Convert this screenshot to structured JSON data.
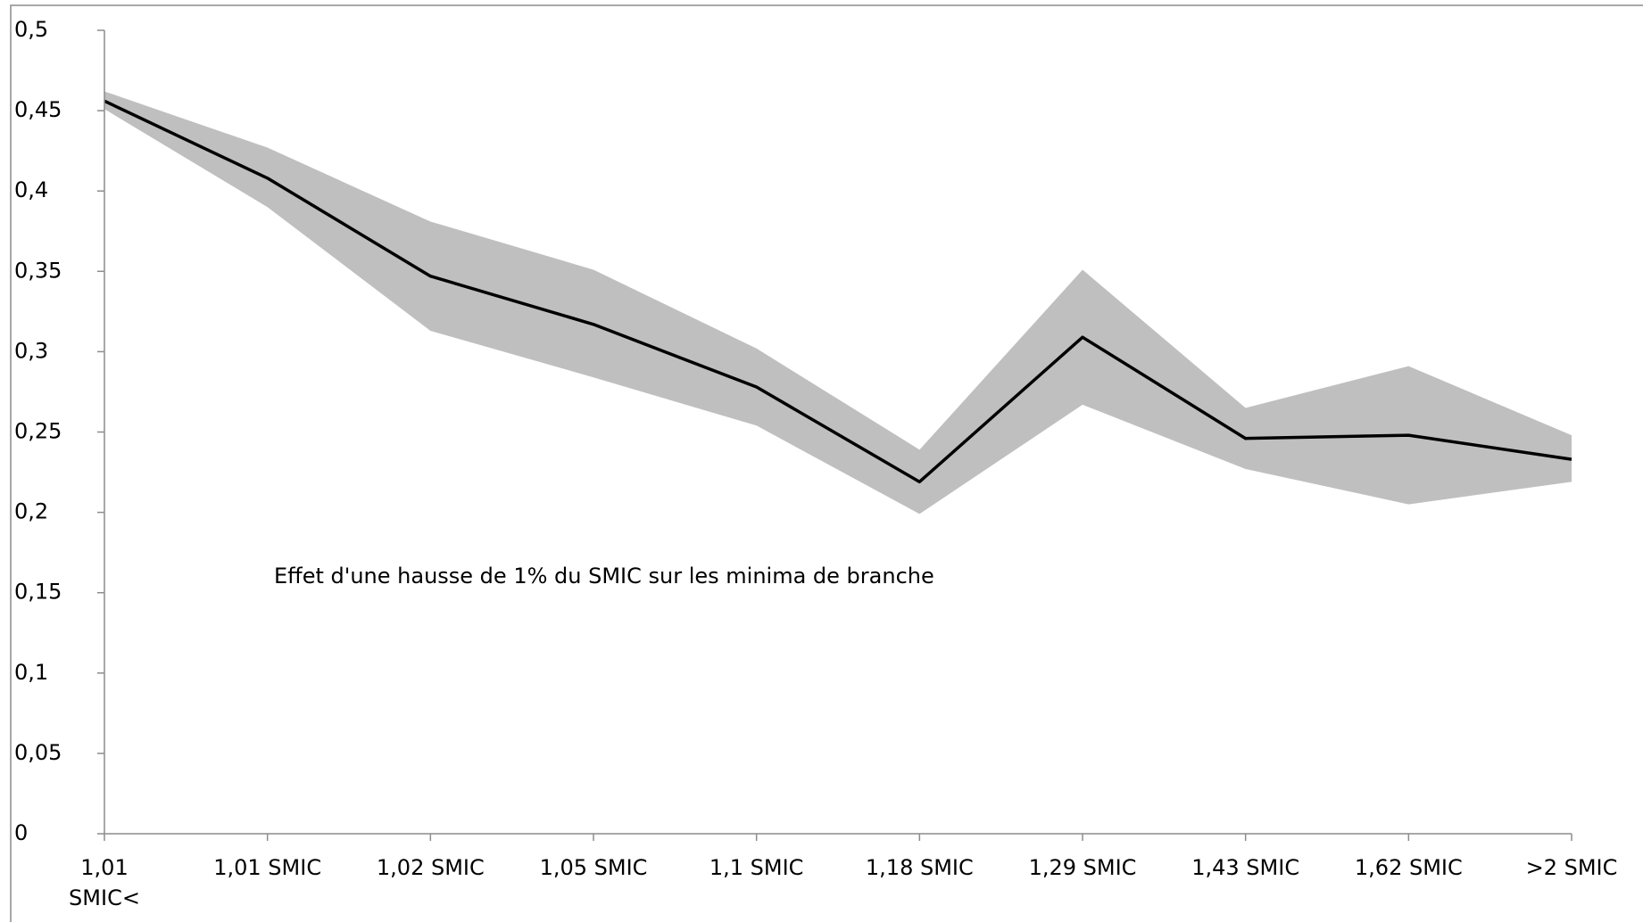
{
  "chart_data": {
    "type": "line",
    "annotation": "Effet d'une hausse de 1% du SMIC sur les minima de branche",
    "categories": [
      "1,01 SMIC<",
      "1,01 SMIC",
      "1,02 SMIC",
      "1,05 SMIC",
      "1,1 SMIC",
      "1,18 SMIC",
      "1,29 SMIC",
      "1,43 SMIC",
      "1,62 SMIC",
      ">2 SMIC"
    ],
    "values": [
      0.456,
      0.408,
      0.347,
      0.317,
      0.278,
      0.219,
      0.309,
      0.246,
      0.248,
      0.233
    ],
    "color": "#000000",
    "band": {
      "color": "#bfbfbf",
      "upper": [
        0.462,
        0.427,
        0.381,
        0.351,
        0.302,
        0.239,
        0.351,
        0.265,
        0.291,
        0.248
      ],
      "lower": [
        0.451,
        0.39,
        0.313,
        0.284,
        0.254,
        0.199,
        0.267,
        0.227,
        0.205,
        0.219
      ]
    },
    "ylim": [
      0,
      0.5
    ],
    "yticks": [
      0,
      {
        "value": 0.05,
        "label": "0,05"
      },
      {
        "value": 0.1,
        "label": "0,1"
      },
      {
        "value": 0.15,
        "label": "0,15"
      },
      {
        "value": 0.2,
        "label": "0,2"
      },
      {
        "value": 0.25,
        "label": "0,25"
      },
      {
        "value": 0.3,
        "label": "0,3"
      },
      {
        "value": 0.35,
        "label": "0,35"
      },
      {
        "value": 0.4,
        "label": "0,4"
      },
      {
        "value": 0.45,
        "label": "0,45"
      },
      {
        "value": 0.5,
        "label": "0,5"
      }
    ],
    "grid": false
  }
}
